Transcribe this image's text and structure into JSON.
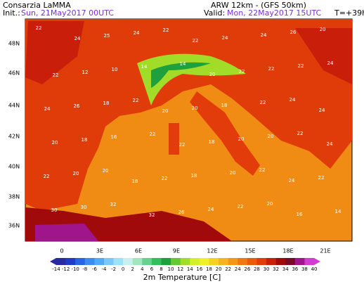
{
  "header": {
    "org": "Consarzia LaMMA",
    "init_label": "Init.:",
    "init": "Sun, 21May2017 00UTC",
    "model": "ARW 12km - (GFS 50km)",
    "valid_label": "Valid:",
    "valid": "Mon, 22May2017 15UTC",
    "lead": "T=+39h"
  },
  "map": {
    "lat_labels": [
      "48N",
      "46N",
      "44N",
      "42N",
      "40N",
      "38N",
      "36N"
    ],
    "lon_labels": [
      "0",
      "3E",
      "6E",
      "9E",
      "12E",
      "15E",
      "18E",
      "21E"
    ],
    "stations": [
      22,
      24,
      25,
      24,
      22,
      22,
      24,
      24,
      26,
      20,
      22,
      12,
      10,
      14,
      14,
      20,
      22,
      22,
      22,
      24,
      24,
      26,
      18,
      22,
      20,
      20,
      18,
      22,
      24,
      24,
      20,
      18,
      16,
      22,
      22,
      18,
      20,
      20,
      22,
      24,
      22,
      20,
      20,
      18,
      22,
      18,
      20,
      22,
      24,
      22,
      30,
      30,
      32,
      32,
      26,
      24,
      22,
      20,
      16,
      14
    ]
  },
  "colorbar": {
    "title": "2m Temperature [C]",
    "labels": [
      -14,
      -12,
      -10,
      -8,
      -6,
      -4,
      -2,
      0,
      2,
      4,
      6,
      8,
      10,
      12,
      14,
      16,
      18,
      20,
      22,
      24,
      26,
      28,
      30,
      32,
      34,
      36,
      38,
      40
    ],
    "colors": [
      "#2a2aa0",
      "#1e3cc8",
      "#2864e6",
      "#3c8cf0",
      "#50aaf5",
      "#78c8fa",
      "#a0e1fa",
      "#c8f0f0",
      "#a0e6be",
      "#64d28c",
      "#32be5a",
      "#1ea03c",
      "#64c832",
      "#a0dc28",
      "#d2f028",
      "#f0f028",
      "#f5d21e",
      "#f5b41e",
      "#f59614",
      "#f07814",
      "#eb5a0a",
      "#e13c0a",
      "#c81e0a",
      "#a00a0a",
      "#780a28",
      "#a0148c",
      "#d23cd2"
    ]
  }
}
